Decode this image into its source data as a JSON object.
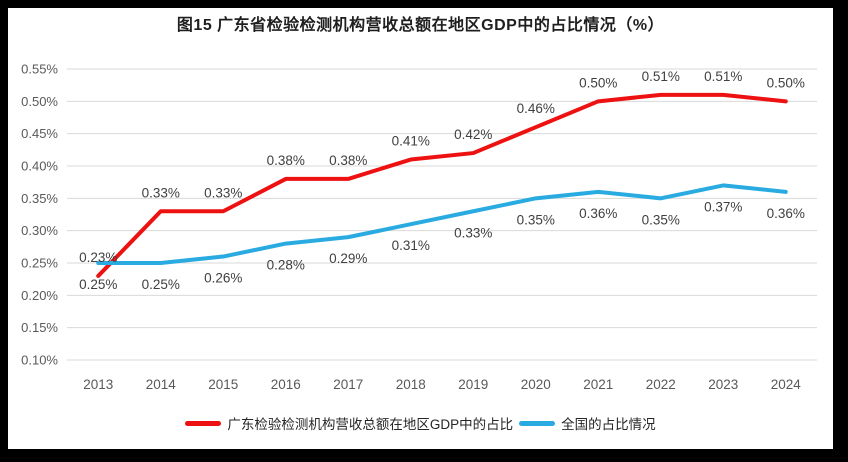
{
  "chart_data": {
    "type": "line",
    "title": "图15  广东省检验检测机构营收总额在地区GDP中的占比情况（%）",
    "categories": [
      "2013",
      "2014",
      "2015",
      "2016",
      "2017",
      "2018",
      "2019",
      "2020",
      "2021",
      "2022",
      "2023",
      "2024"
    ],
    "series": [
      {
        "name": "广东检验检测机构营收总额在地区GDP中的占比",
        "color": "#ee1111",
        "values": [
          0.23,
          0.33,
          0.33,
          0.38,
          0.38,
          0.41,
          0.42,
          0.46,
          0.5,
          0.51,
          0.51,
          0.5
        ],
        "point_labels": [
          "0.23%",
          "0.33%",
          "0.33%",
          "0.38%",
          "0.38%",
          "0.41%",
          "0.42%",
          "0.46%",
          "0.50%",
          "0.51%",
          "0.51%",
          "0.50%"
        ],
        "label_position": "above"
      },
      {
        "name": "全国的占比情况",
        "color": "#29abe2",
        "values": [
          0.25,
          0.25,
          0.26,
          0.28,
          0.29,
          0.31,
          0.33,
          0.35,
          0.36,
          0.35,
          0.37,
          0.36
        ],
        "point_labels": [
          "0.25%",
          "0.25%",
          "0.26%",
          "0.28%",
          "0.29%",
          "0.31%",
          "0.33%",
          "0.35%",
          "0.36%",
          "0.35%",
          "0.37%",
          "0.36%"
        ],
        "label_position": "below"
      }
    ],
    "y_axis": {
      "min": 0.1,
      "max": 0.55,
      "step": 0.05,
      "tick_labels": [
        "0.55%",
        "0.50%",
        "0.45%",
        "0.40%",
        "0.35%",
        "0.30%",
        "0.25%",
        "0.20%",
        "0.15%",
        "0.10%"
      ]
    },
    "grid": "horizontal",
    "legend_position": "bottom",
    "colors": {
      "grid": "#d9d9d9",
      "tick_text": "#595959",
      "data_label_text": "#404040",
      "panel_background": "#ffffff",
      "outer_background": "#000000"
    }
  }
}
